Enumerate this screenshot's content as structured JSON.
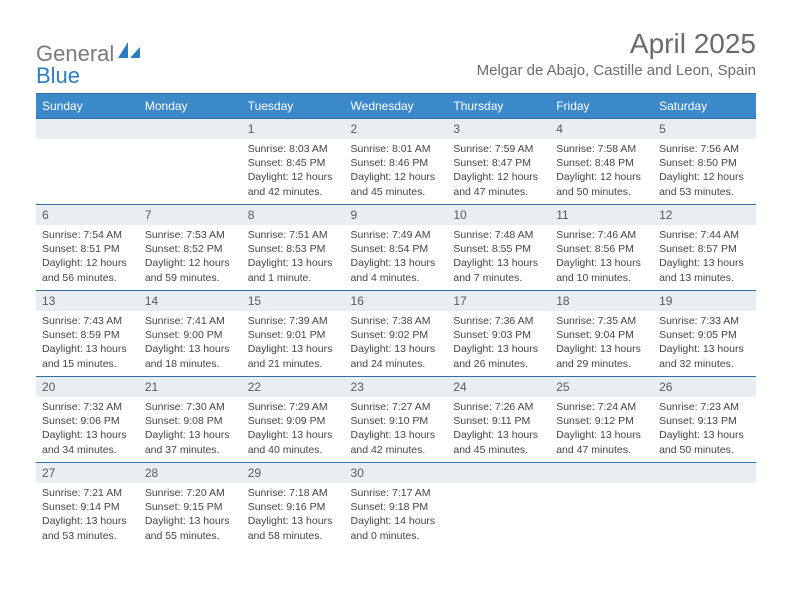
{
  "logo": {
    "text1": "General",
    "text2": "Blue"
  },
  "title": "April 2025",
  "location": "Melgar de Abajo, Castille and Leon, Spain",
  "header_bg": "#3b89c9",
  "daynum_bg": "#e9eef2",
  "border_color": "#2f6fa3",
  "text_color": "#444444",
  "days": [
    "Sunday",
    "Monday",
    "Tuesday",
    "Wednesday",
    "Thursday",
    "Friday",
    "Saturday"
  ],
  "weeks": [
    [
      null,
      null,
      {
        "n": "1",
        "sr": "Sunrise: 8:03 AM",
        "ss": "Sunset: 8:45 PM",
        "dl1": "Daylight: 12 hours",
        "dl2": "and 42 minutes."
      },
      {
        "n": "2",
        "sr": "Sunrise: 8:01 AM",
        "ss": "Sunset: 8:46 PM",
        "dl1": "Daylight: 12 hours",
        "dl2": "and 45 minutes."
      },
      {
        "n": "3",
        "sr": "Sunrise: 7:59 AM",
        "ss": "Sunset: 8:47 PM",
        "dl1": "Daylight: 12 hours",
        "dl2": "and 47 minutes."
      },
      {
        "n": "4",
        "sr": "Sunrise: 7:58 AM",
        "ss": "Sunset: 8:48 PM",
        "dl1": "Daylight: 12 hours",
        "dl2": "and 50 minutes."
      },
      {
        "n": "5",
        "sr": "Sunrise: 7:56 AM",
        "ss": "Sunset: 8:50 PM",
        "dl1": "Daylight: 12 hours",
        "dl2": "and 53 minutes."
      }
    ],
    [
      {
        "n": "6",
        "sr": "Sunrise: 7:54 AM",
        "ss": "Sunset: 8:51 PM",
        "dl1": "Daylight: 12 hours",
        "dl2": "and 56 minutes."
      },
      {
        "n": "7",
        "sr": "Sunrise: 7:53 AM",
        "ss": "Sunset: 8:52 PM",
        "dl1": "Daylight: 12 hours",
        "dl2": "and 59 minutes."
      },
      {
        "n": "8",
        "sr": "Sunrise: 7:51 AM",
        "ss": "Sunset: 8:53 PM",
        "dl1": "Daylight: 13 hours",
        "dl2": "and 1 minute."
      },
      {
        "n": "9",
        "sr": "Sunrise: 7:49 AM",
        "ss": "Sunset: 8:54 PM",
        "dl1": "Daylight: 13 hours",
        "dl2": "and 4 minutes."
      },
      {
        "n": "10",
        "sr": "Sunrise: 7:48 AM",
        "ss": "Sunset: 8:55 PM",
        "dl1": "Daylight: 13 hours",
        "dl2": "and 7 minutes."
      },
      {
        "n": "11",
        "sr": "Sunrise: 7:46 AM",
        "ss": "Sunset: 8:56 PM",
        "dl1": "Daylight: 13 hours",
        "dl2": "and 10 minutes."
      },
      {
        "n": "12",
        "sr": "Sunrise: 7:44 AM",
        "ss": "Sunset: 8:57 PM",
        "dl1": "Daylight: 13 hours",
        "dl2": "and 13 minutes."
      }
    ],
    [
      {
        "n": "13",
        "sr": "Sunrise: 7:43 AM",
        "ss": "Sunset: 8:59 PM",
        "dl1": "Daylight: 13 hours",
        "dl2": "and 15 minutes."
      },
      {
        "n": "14",
        "sr": "Sunrise: 7:41 AM",
        "ss": "Sunset: 9:00 PM",
        "dl1": "Daylight: 13 hours",
        "dl2": "and 18 minutes."
      },
      {
        "n": "15",
        "sr": "Sunrise: 7:39 AM",
        "ss": "Sunset: 9:01 PM",
        "dl1": "Daylight: 13 hours",
        "dl2": "and 21 minutes."
      },
      {
        "n": "16",
        "sr": "Sunrise: 7:38 AM",
        "ss": "Sunset: 9:02 PM",
        "dl1": "Daylight: 13 hours",
        "dl2": "and 24 minutes."
      },
      {
        "n": "17",
        "sr": "Sunrise: 7:36 AM",
        "ss": "Sunset: 9:03 PM",
        "dl1": "Daylight: 13 hours",
        "dl2": "and 26 minutes."
      },
      {
        "n": "18",
        "sr": "Sunrise: 7:35 AM",
        "ss": "Sunset: 9:04 PM",
        "dl1": "Daylight: 13 hours",
        "dl2": "and 29 minutes."
      },
      {
        "n": "19",
        "sr": "Sunrise: 7:33 AM",
        "ss": "Sunset: 9:05 PM",
        "dl1": "Daylight: 13 hours",
        "dl2": "and 32 minutes."
      }
    ],
    [
      {
        "n": "20",
        "sr": "Sunrise: 7:32 AM",
        "ss": "Sunset: 9:06 PM",
        "dl1": "Daylight: 13 hours",
        "dl2": "and 34 minutes."
      },
      {
        "n": "21",
        "sr": "Sunrise: 7:30 AM",
        "ss": "Sunset: 9:08 PM",
        "dl1": "Daylight: 13 hours",
        "dl2": "and 37 minutes."
      },
      {
        "n": "22",
        "sr": "Sunrise: 7:29 AM",
        "ss": "Sunset: 9:09 PM",
        "dl1": "Daylight: 13 hours",
        "dl2": "and 40 minutes."
      },
      {
        "n": "23",
        "sr": "Sunrise: 7:27 AM",
        "ss": "Sunset: 9:10 PM",
        "dl1": "Daylight: 13 hours",
        "dl2": "and 42 minutes."
      },
      {
        "n": "24",
        "sr": "Sunrise: 7:26 AM",
        "ss": "Sunset: 9:11 PM",
        "dl1": "Daylight: 13 hours",
        "dl2": "and 45 minutes."
      },
      {
        "n": "25",
        "sr": "Sunrise: 7:24 AM",
        "ss": "Sunset: 9:12 PM",
        "dl1": "Daylight: 13 hours",
        "dl2": "and 47 minutes."
      },
      {
        "n": "26",
        "sr": "Sunrise: 7:23 AM",
        "ss": "Sunset: 9:13 PM",
        "dl1": "Daylight: 13 hours",
        "dl2": "and 50 minutes."
      }
    ],
    [
      {
        "n": "27",
        "sr": "Sunrise: 7:21 AM",
        "ss": "Sunset: 9:14 PM",
        "dl1": "Daylight: 13 hours",
        "dl2": "and 53 minutes."
      },
      {
        "n": "28",
        "sr": "Sunrise: 7:20 AM",
        "ss": "Sunset: 9:15 PM",
        "dl1": "Daylight: 13 hours",
        "dl2": "and 55 minutes."
      },
      {
        "n": "29",
        "sr": "Sunrise: 7:18 AM",
        "ss": "Sunset: 9:16 PM",
        "dl1": "Daylight: 13 hours",
        "dl2": "and 58 minutes."
      },
      {
        "n": "30",
        "sr": "Sunrise: 7:17 AM",
        "ss": "Sunset: 9:18 PM",
        "dl1": "Daylight: 14 hours",
        "dl2": "and 0 minutes."
      },
      null,
      null,
      null
    ]
  ]
}
